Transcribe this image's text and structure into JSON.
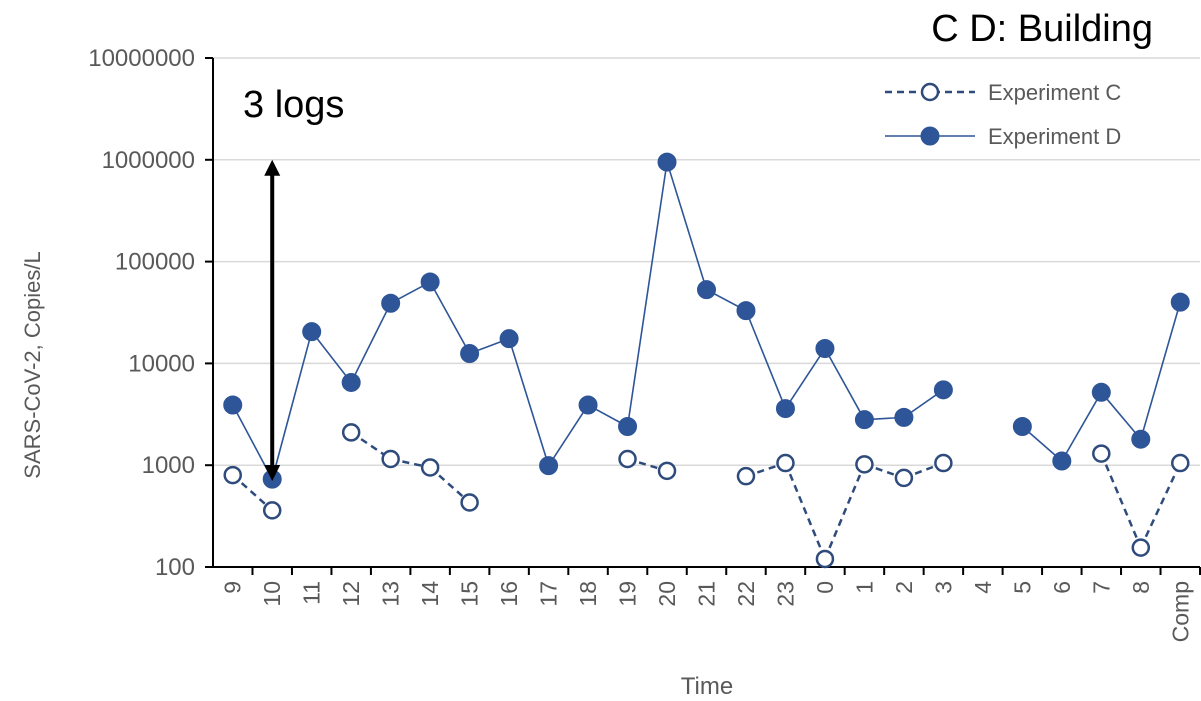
{
  "corner_label": "C D: Building",
  "annotation": {
    "text": "3 logs",
    "from": 1000000,
    "to": 700,
    "at_category": "10"
  },
  "chart_data": {
    "type": "line",
    "title": "",
    "xlabel": "Time",
    "ylabel": "SARS-CoV-2, Copies/L",
    "yscale": "log",
    "ylim": [
      100,
      10000000
    ],
    "yticks": [
      "100",
      "1000",
      "10000",
      "100000",
      "1000000",
      "10000000"
    ],
    "categories": [
      "9",
      "10",
      "11",
      "12",
      "13",
      "14",
      "15",
      "16",
      "17",
      "18",
      "19",
      "20",
      "21",
      "22",
      "23",
      "0",
      "1",
      "2",
      "3",
      "4",
      "5",
      "6",
      "7",
      "8",
      "Comp"
    ],
    "grid": true,
    "legend_position": "top-right",
    "series": [
      {
        "name": "Experiment C",
        "style": "dashed-open-circle",
        "color": "#2f4b7c",
        "values": [
          800,
          360,
          null,
          2100,
          1150,
          950,
          430,
          null,
          null,
          null,
          1150,
          880,
          null,
          780,
          1050,
          120,
          1020,
          750,
          1050,
          null,
          null,
          null,
          1300,
          155,
          1050
        ]
      },
      {
        "name": "Experiment D",
        "style": "solid-filled-circle",
        "color": "#2e5597",
        "values": [
          3900,
          730,
          20500,
          6500,
          39000,
          63000,
          12500,
          17500,
          990,
          3900,
          2400,
          950000,
          53000,
          33000,
          3600,
          14000,
          2800,
          2950,
          5500,
          null,
          2400,
          1100,
          5200,
          1800,
          40000
        ]
      }
    ]
  }
}
